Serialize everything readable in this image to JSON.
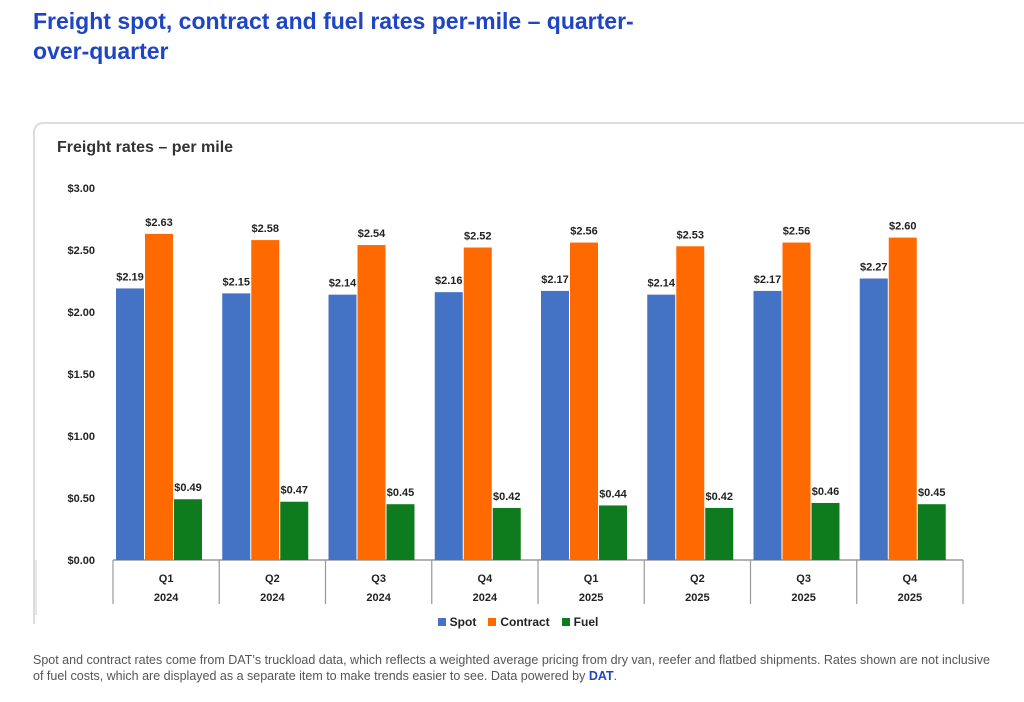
{
  "page_title": "Freight spot, contract and fuel rates per-mile – quarter-over-quarter",
  "footnote": {
    "text": "Spot and contract rates come from DAT’s truckload data, which reflects a weighted average pricing from dry van, reefer and flatbed shipments. Rates shown are not inclusive of fuel costs, which are displayed as a separate item to make trends easier to see. Data powered by ",
    "link": "DAT",
    "end": "."
  },
  "chart_data": {
    "type": "bar",
    "title": "Freight rates – per mile",
    "categories": [
      [
        "Q1",
        "2024"
      ],
      [
        "Q2",
        "2024"
      ],
      [
        "Q3",
        "2024"
      ],
      [
        "Q4",
        "2024"
      ],
      [
        "Q1",
        "2025"
      ],
      [
        "Q2",
        "2025"
      ],
      [
        "Q3",
        "2025"
      ],
      [
        "Q4",
        "2025"
      ]
    ],
    "series": [
      {
        "name": "Spot",
        "color": "#4472c4",
        "values": [
          2.19,
          2.15,
          2.14,
          2.16,
          2.17,
          2.14,
          2.17,
          2.27
        ]
      },
      {
        "name": "Contract",
        "color": "#ff6a00",
        "values": [
          2.63,
          2.58,
          2.54,
          2.52,
          2.56,
          2.53,
          2.56,
          2.6
        ]
      },
      {
        "name": "Fuel",
        "color": "#0f7b1f",
        "values": [
          0.49,
          0.47,
          0.45,
          0.42,
          0.44,
          0.42,
          0.46,
          0.45
        ]
      }
    ],
    "ylim": [
      0,
      3
    ],
    "yticks": [
      "$0.00",
      "$0.50",
      "$1.00",
      "$1.50",
      "$2.00",
      "$2.50",
      "$3.00"
    ],
    "grid": false,
    "legend": "bottom-center",
    "data_labels": true
  }
}
